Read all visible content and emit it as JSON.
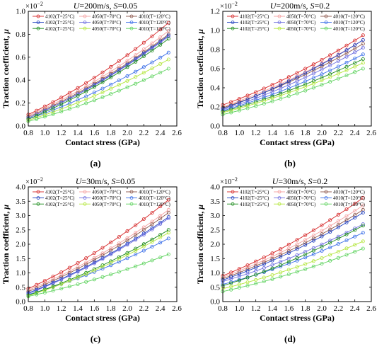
{
  "chart_data": [
    {
      "type": "line",
      "panel_label": "(a)",
      "title": "U=200m/s, S=0.05",
      "title_parts": [
        {
          "t": "U",
          "i": true
        },
        {
          "t": "=200m/s, ",
          "i": false
        },
        {
          "t": "S",
          "i": true
        },
        {
          "t": "=0.05",
          "i": false
        }
      ],
      "xlabel": "Contact stress (GPa)",
      "ylabel": "Traction coefficient, μ",
      "exponent": "10",
      "exponent_power": "−2",
      "x": [
        0.8,
        0.9,
        1.0,
        1.1,
        1.2,
        1.3,
        1.4,
        1.5,
        1.6,
        1.7,
        1.8,
        1.9,
        2.0,
        2.1,
        2.2,
        2.3,
        2.4,
        2.5
      ],
      "xlim": [
        0.8,
        2.6
      ],
      "ylim": [
        0.0,
        1.0
      ],
      "xticks": [
        "0.8",
        "1.0",
        "1.2",
        "1.4",
        "1.6",
        "1.8",
        "2.0",
        "2.2",
        "2.4",
        "2.6"
      ],
      "yticks": [
        "0.0",
        "0.2",
        "0.4",
        "0.6",
        "0.8",
        "1.0"
      ],
      "legend": "top-left",
      "series": [
        {
          "name": "4102(T=25°C)",
          "color": "#d62728",
          "start": 0.1,
          "end": 0.9
        },
        {
          "name": "4050(T=70°C)",
          "color": "#f4a0a0",
          "start": 0.09,
          "end": 0.83
        },
        {
          "name": "4010(T=120°C)",
          "color": "#8c564b",
          "start": 0.08,
          "end": 0.8
        },
        {
          "name": "4102(T=25°C)",
          "color": "#1f3fbf",
          "start": 0.07,
          "end": 0.79
        },
        {
          "name": "4050(T=70°C)",
          "color": "#6e6ee0",
          "start": 0.07,
          "end": 0.78
        },
        {
          "name": "4010(T=120°C)",
          "color": "#3a6ee8",
          "start": 0.06,
          "end": 0.64
        },
        {
          "name": "4102(T=25°C)",
          "color": "#1a8a1a",
          "start": 0.06,
          "end": 0.76
        },
        {
          "name": "4050(T=70°C)",
          "color": "#b3e63b",
          "start": 0.05,
          "end": 0.58
        },
        {
          "name": "4010(T=120°C)",
          "color": "#5fd35f",
          "start": 0.04,
          "end": 0.5
        }
      ]
    },
    {
      "type": "line",
      "panel_label": "(b)",
      "title": "U=200m/s, S=0.2",
      "title_parts": [
        {
          "t": "U",
          "i": true
        },
        {
          "t": "=200m/s, ",
          "i": false
        },
        {
          "t": "S",
          "i": true
        },
        {
          "t": "=0.2",
          "i": false
        }
      ],
      "xlabel": "Contact stress (GPa)",
      "ylabel": "Traction coefficient, μ",
      "exponent": "10",
      "exponent_power": "−2",
      "x": [
        0.8,
        0.9,
        1.0,
        1.1,
        1.2,
        1.3,
        1.4,
        1.5,
        1.6,
        1.7,
        1.8,
        1.9,
        2.0,
        2.1,
        2.2,
        2.3,
        2.4,
        2.5
      ],
      "xlim": [
        0.8,
        2.6
      ],
      "ylim": [
        0.0,
        1.2
      ],
      "xticks": [
        "0.8",
        "1.0",
        "1.2",
        "1.4",
        "1.6",
        "1.8",
        "2.0",
        "2.2",
        "2.4",
        "2.6"
      ],
      "yticks": [
        "0.0",
        "0.2",
        "0.4",
        "0.6",
        "0.8",
        "1.0",
        "1.2"
      ],
      "legend": "top",
      "series": [
        {
          "name": "4102(T=25°C)",
          "color": "#d62728",
          "start": 0.22,
          "end": 0.95
        },
        {
          "name": "4050(T=70°C)",
          "color": "#f4a0a0",
          "start": 0.2,
          "end": 0.9
        },
        {
          "name": "4010(T=120°C)",
          "color": "#8c564b",
          "start": 0.19,
          "end": 0.86
        },
        {
          "name": "4102(T=25°C)",
          "color": "#1f3fbf",
          "start": 0.18,
          "end": 0.9
        },
        {
          "name": "4050(T=70°C)",
          "color": "#6e6ee0",
          "start": 0.17,
          "end": 0.82
        },
        {
          "name": "4010(T=120°C)",
          "color": "#3a6ee8",
          "start": 0.16,
          "end": 0.75
        },
        {
          "name": "4102(T=25°C)",
          "color": "#1a8a1a",
          "start": 0.15,
          "end": 0.7
        },
        {
          "name": "4050(T=70°C)",
          "color": "#b3e63b",
          "start": 0.14,
          "end": 0.66
        },
        {
          "name": "4010(T=120°C)",
          "color": "#5fd35f",
          "start": 0.12,
          "end": 0.6
        }
      ]
    },
    {
      "type": "line",
      "panel_label": "(c)",
      "title": "U=30m/s, S=0.05",
      "title_parts": [
        {
          "t": "U",
          "i": true
        },
        {
          "t": "=30m/s, ",
          "i": false
        },
        {
          "t": "S",
          "i": true
        },
        {
          "t": "=0.05",
          "i": false
        }
      ],
      "xlabel": "Contact stress (GPa)",
      "ylabel": "Traction coefficient, μ",
      "exponent": "10",
      "exponent_power": "−2",
      "x": [
        0.8,
        0.9,
        1.0,
        1.1,
        1.2,
        1.3,
        1.4,
        1.5,
        1.6,
        1.7,
        1.8,
        1.9,
        2.0,
        2.1,
        2.2,
        2.3,
        2.4,
        2.5
      ],
      "xlim": [
        0.8,
        2.6
      ],
      "ylim": [
        0.0,
        4.0
      ],
      "xticks": [
        "0.8",
        "1.0",
        "1.2",
        "1.4",
        "1.6",
        "1.8",
        "2.0",
        "2.2",
        "2.4",
        "2.6"
      ],
      "yticks": [
        "0.0",
        "0.5",
        "1.0",
        "1.5",
        "2.0",
        "2.5",
        "3.0",
        "3.5",
        "4.0"
      ],
      "legend": "top-left",
      "series": [
        {
          "name": "4102(T=25°C)",
          "color": "#d62728",
          "start": 0.45,
          "end": 3.55
        },
        {
          "name": "4050(T=70°C)",
          "color": "#f4a0a0",
          "start": 0.4,
          "end": 3.2
        },
        {
          "name": "4010(T=120°C)",
          "color": "#8c564b",
          "start": 0.35,
          "end": 3.1
        },
        {
          "name": "4102(T=25°C)",
          "color": "#1f3fbf",
          "start": 0.3,
          "end": 2.95
        },
        {
          "name": "4050(T=70°C)",
          "color": "#6e6ee0",
          "start": 0.28,
          "end": 2.9
        },
        {
          "name": "4010(T=120°C)",
          "color": "#3a6ee8",
          "start": 0.25,
          "end": 2.2
        },
        {
          "name": "4102(T=25°C)",
          "color": "#1a8a1a",
          "start": 0.22,
          "end": 2.5
        },
        {
          "name": "4050(T=70°C)",
          "color": "#b3e63b",
          "start": 0.2,
          "end": 2.4
        },
        {
          "name": "4010(T=120°C)",
          "color": "#5fd35f",
          "start": 0.18,
          "end": 1.65
        }
      ]
    },
    {
      "type": "line",
      "panel_label": "(d)",
      "title": "U=30m/s, S=0.2",
      "title_parts": [
        {
          "t": "U",
          "i": true
        },
        {
          "t": "=30m/s, ",
          "i": false
        },
        {
          "t": "S",
          "i": true
        },
        {
          "t": "=0.2",
          "i": false
        }
      ],
      "xlabel": "Contact stress (GPa)",
      "ylabel": "Traction coefficient, μ",
      "exponent": "10",
      "exponent_power": "−2",
      "x": [
        0.8,
        0.9,
        1.0,
        1.1,
        1.2,
        1.3,
        1.4,
        1.5,
        1.6,
        1.7,
        1.8,
        1.9,
        2.0,
        2.1,
        2.2,
        2.3,
        2.4,
        2.5
      ],
      "xlim": [
        0.8,
        2.6
      ],
      "ylim": [
        0.0,
        4.0
      ],
      "xticks": [
        "0.8",
        "1.0",
        "1.2",
        "1.4",
        "1.6",
        "1.8",
        "2.0",
        "2.2",
        "2.4",
        "2.6"
      ],
      "yticks": [
        "0.0",
        "0.5",
        "1.0",
        "1.5",
        "2.0",
        "2.5",
        "3.0",
        "3.5",
        "4.0"
      ],
      "legend": "top-left",
      "series": [
        {
          "name": "4102(T=25°C)",
          "color": "#d62728",
          "start": 0.9,
          "end": 3.62
        },
        {
          "name": "4050(T=70°C)",
          "color": "#f4a0a0",
          "start": 0.85,
          "end": 3.35
        },
        {
          "name": "4010(T=120°C)",
          "color": "#8c564b",
          "start": 0.8,
          "end": 3.2
        },
        {
          "name": "4102(T=25°C)",
          "color": "#1f3fbf",
          "start": 0.75,
          "end": 3.1
        },
        {
          "name": "4050(T=70°C)",
          "color": "#6e6ee0",
          "start": 0.7,
          "end": 2.7
        },
        {
          "name": "4010(T=120°C)",
          "color": "#3a6ee8",
          "start": 0.6,
          "end": 2.4
        },
        {
          "name": "4102(T=25°C)",
          "color": "#1a8a1a",
          "start": 0.55,
          "end": 2.65
        },
        {
          "name": "4050(T=70°C)",
          "color": "#b3e63b",
          "start": 0.45,
          "end": 2.1
        },
        {
          "name": "4010(T=120°C)",
          "color": "#5fd35f",
          "start": 0.35,
          "end": 1.85
        }
      ]
    }
  ]
}
